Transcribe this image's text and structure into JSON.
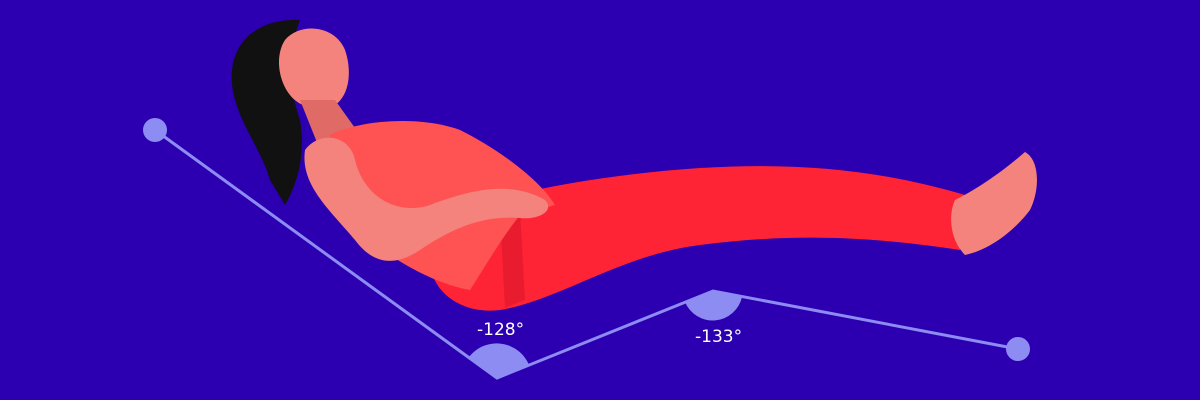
{
  "colors": {
    "background": "#2c00b0",
    "angle_line": "#8c8cf2",
    "angle_fill": "#8c8cf2",
    "skin": "#f3837c",
    "skin_shadow": "#e06a66",
    "hair": "#111111",
    "top": "#ff5252",
    "pants": "#ff2435",
    "pants_shadow": "#e81c2e"
  },
  "angles": [
    {
      "label": "-128°"
    },
    {
      "label": "-133°"
    }
  ]
}
